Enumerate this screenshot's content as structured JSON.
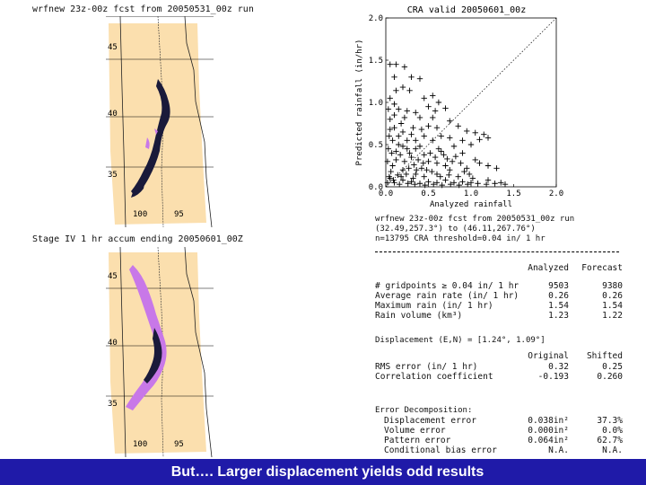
{
  "top_map": {
    "title": "wrfnew 23z-00z fcst from 20050531_00z run",
    "lat_labels": [
      "45",
      "40",
      "35"
    ],
    "lon_labels": [
      "100",
      "95"
    ]
  },
  "bottom_map": {
    "title": "Stage IV 1 hr accum ending 20050601_00Z",
    "lat_labels": [
      "45",
      "40",
      "35"
    ],
    "lon_labels": [
      "100",
      "95"
    ]
  },
  "chart_data": {
    "type": "scatter",
    "title": "CRA valid 20050601_00z",
    "xlabel": "Analyzed rainfall",
    "ylabel": "Predicted rainfall (in/hr)",
    "xlim": [
      0,
      2.0
    ],
    "ylim": [
      0,
      2.0
    ],
    "xticks": [
      "0.0",
      "0.5",
      "1.0",
      "1.5",
      "2.0"
    ],
    "yticks": [
      "0.0",
      "0.5",
      "1.0",
      "1.5",
      "2.0"
    ],
    "reference_line": "1:1 diagonal (dotted)",
    "marker": "+",
    "points": [
      [
        0.05,
        1.45
      ],
      [
        0.12,
        1.45
      ],
      [
        0.22,
        1.42
      ],
      [
        0.1,
        1.3
      ],
      [
        0.3,
        1.3
      ],
      [
        0.4,
        1.28
      ],
      [
        0.2,
        1.18
      ],
      [
        0.12,
        1.14
      ],
      [
        0.28,
        1.14
      ],
      [
        0.05,
        1.05
      ],
      [
        0.1,
        0.98
      ],
      [
        0.03,
        0.92
      ],
      [
        0.15,
        0.92
      ],
      [
        0.25,
        0.9
      ],
      [
        0.45,
        1.05
      ],
      [
        0.55,
        1.08
      ],
      [
        0.62,
        1.0
      ],
      [
        0.5,
        0.95
      ],
      [
        0.58,
        0.9
      ],
      [
        0.7,
        0.93
      ],
      [
        0.4,
        0.82
      ],
      [
        0.55,
        0.82
      ],
      [
        0.75,
        0.78
      ],
      [
        0.85,
        0.72
      ],
      [
        0.95,
        0.66
      ],
      [
        1.05,
        0.64
      ],
      [
        1.15,
        0.62
      ],
      [
        1.2,
        0.58
      ],
      [
        1.1,
        0.56
      ],
      [
        0.9,
        0.55
      ],
      [
        1.0,
        0.5
      ],
      [
        0.8,
        0.48
      ],
      [
        0.65,
        0.42
      ],
      [
        0.9,
        0.4
      ],
      [
        1.05,
        0.32
      ],
      [
        1.1,
        0.28
      ],
      [
        1.2,
        0.25
      ],
      [
        1.3,
        0.22
      ],
      [
        0.95,
        0.22
      ],
      [
        0.85,
        0.12
      ],
      [
        0.05,
        0.8
      ],
      [
        0.1,
        0.7
      ],
      [
        0.2,
        0.65
      ],
      [
        0.3,
        0.62
      ],
      [
        0.35,
        0.55
      ],
      [
        0.15,
        0.5
      ],
      [
        0.25,
        0.45
      ],
      [
        0.4,
        0.48
      ],
      [
        0.45,
        0.38
      ],
      [
        0.3,
        0.35
      ],
      [
        0.5,
        0.3
      ],
      [
        0.6,
        0.28
      ],
      [
        0.7,
        0.25
      ],
      [
        0.75,
        0.2
      ],
      [
        0.6,
        0.15
      ],
      [
        0.45,
        0.12
      ],
      [
        0.35,
        0.15
      ],
      [
        0.2,
        0.2
      ],
      [
        0.08,
        0.25
      ],
      [
        0.55,
        0.55
      ],
      [
        0.65,
        0.6
      ],
      [
        0.75,
        0.58
      ],
      [
        0.05,
        0.1
      ],
      [
        0.1,
        0.05
      ],
      [
        0.2,
        0.08
      ],
      [
        0.3,
        0.06
      ],
      [
        0.4,
        0.04
      ],
      [
        0.5,
        0.06
      ],
      [
        0.6,
        0.05
      ],
      [
        0.7,
        0.08
      ],
      [
        0.8,
        0.05
      ],
      [
        0.9,
        0.06
      ],
      [
        1.0,
        0.05
      ],
      [
        1.2,
        0.08
      ],
      [
        1.35,
        0.05
      ],
      [
        0.02,
        0.3
      ],
      [
        0.03,
        0.45
      ],
      [
        0.04,
        0.6
      ],
      [
        0.07,
        0.4
      ],
      [
        0.12,
        0.32
      ],
      [
        0.17,
        0.38
      ],
      [
        0.22,
        0.3
      ],
      [
        0.27,
        0.22
      ],
      [
        0.33,
        0.26
      ],
      [
        0.38,
        0.32
      ],
      [
        0.42,
        0.22
      ],
      [
        0.48,
        0.2
      ],
      [
        0.52,
        0.4
      ],
      [
        0.58,
        0.35
      ],
      [
        0.62,
        0.45
      ],
      [
        0.68,
        0.38
      ],
      [
        0.72,
        0.33
      ],
      [
        0.78,
        0.3
      ],
      [
        0.82,
        0.36
      ],
      [
        0.88,
        0.28
      ],
      [
        0.92,
        0.18
      ],
      [
        0.98,
        0.15
      ],
      [
        1.02,
        0.1
      ],
      [
        0.06,
        0.18
      ],
      [
        0.14,
        0.14
      ],
      [
        0.18,
        0.12
      ],
      [
        0.24,
        0.15
      ],
      [
        0.32,
        0.1
      ],
      [
        0.36,
        0.2
      ],
      [
        0.44,
        0.28
      ],
      [
        0.54,
        0.18
      ],
      [
        0.64,
        0.12
      ],
      [
        0.74,
        0.14
      ],
      [
        0.02,
        0.05
      ],
      [
        0.04,
        0.12
      ],
      [
        0.09,
        0.08
      ],
      [
        0.16,
        0.03
      ],
      [
        0.26,
        0.04
      ],
      [
        0.34,
        0.03
      ],
      [
        0.46,
        0.02
      ],
      [
        0.56,
        0.03
      ],
      [
        0.66,
        0.02
      ],
      [
        0.76,
        0.03
      ],
      [
        0.86,
        0.02
      ],
      [
        0.96,
        0.03
      ],
      [
        1.08,
        0.04
      ],
      [
        1.18,
        0.03
      ],
      [
        1.28,
        0.04
      ],
      [
        1.4,
        0.03
      ],
      [
        0.15,
        0.6
      ],
      [
        0.08,
        0.55
      ],
      [
        0.25,
        0.55
      ],
      [
        0.35,
        0.45
      ],
      [
        0.12,
        0.42
      ],
      [
        0.2,
        0.48
      ],
      [
        0.28,
        0.4
      ],
      [
        0.45,
        0.6
      ],
      [
        0.05,
        0.68
      ],
      [
        0.18,
        0.75
      ],
      [
        0.32,
        0.7
      ],
      [
        0.42,
        0.68
      ],
      [
        0.5,
        0.72
      ],
      [
        0.6,
        0.7
      ],
      [
        0.1,
        0.85
      ],
      [
        0.22,
        0.82
      ],
      [
        0.35,
        0.88
      ]
    ]
  },
  "stats": {
    "header1": "wrfnew 23z-00z fcst from 20050531_00z run",
    "header2": "(32.49,257.3°) to (46.11,267.76°)",
    "header3": "n=13795  CRA threshold=0.04 in/ 1 hr",
    "col_analyzed": "Analyzed",
    "col_forecast": "Forecast",
    "rows": [
      {
        "label": "# gridpoints ≥ 0.04 in/ 1 hr",
        "analyzed": "9503",
        "forecast": "9380"
      },
      {
        "label": "Average rain rate (in/ 1 hr)",
        "analyzed": "0.26",
        "forecast": "0.26"
      },
      {
        "label": "Maximum rain (in/ 1 hr)",
        "analyzed": "1.54",
        "forecast": "1.54"
      },
      {
        "label": "Rain volume (km³)",
        "analyzed": "1.23",
        "forecast": "1.22"
      }
    ],
    "displacement": "Displacement (E,N) = [1.24°, 1.09°]",
    "col_original": "Original",
    "col_shifted": "Shifted",
    "rows2": [
      {
        "label": "RMS error (in/ 1 hr)",
        "original": "0.32",
        "shifted": "0.25"
      },
      {
        "label": "Correlation coefficient",
        "original": "-0.193",
        "shifted": "0.260"
      }
    ],
    "error_header": "Error Decomposition:",
    "rows3": [
      {
        "label": "Displacement error",
        "value": "0.038in²",
        "pct": "37.3%"
      },
      {
        "label": "Volume error",
        "value": "0.000in²",
        "pct": "0.0%"
      },
      {
        "label": "Pattern error",
        "value": "0.064in²",
        "pct": "62.7%"
      },
      {
        "label": "Conditional bias error",
        "value": "N.A.",
        "pct": "N.A."
      }
    ]
  },
  "footer": {
    "text": "But…. Larger displacement yields odd results",
    "color": "#1f1aa8"
  },
  "colors": {
    "map_fill": "#fbdfae",
    "precip_purple": "#c878e8",
    "precip_dark": "#1a1a3a"
  }
}
